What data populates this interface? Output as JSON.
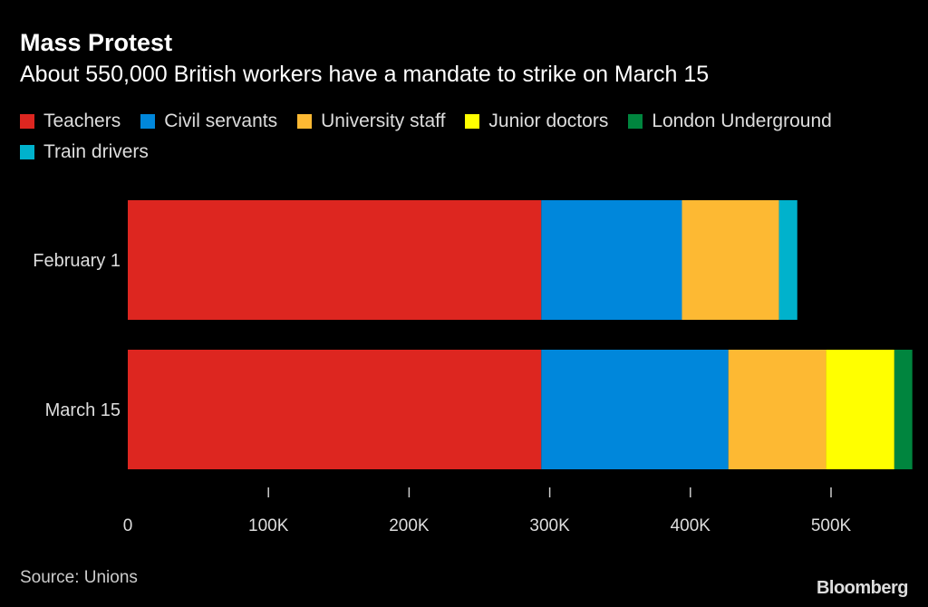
{
  "chart_data": {
    "type": "bar",
    "orientation": "horizontal",
    "stacked": true,
    "title": "Mass Protest",
    "subtitle": "About 550,000 British workers have a mandate to strike on March 15",
    "categories": [
      "February 1",
      "March 15"
    ],
    "series": [
      {
        "name": "Teachers",
        "color": "#dd2620",
        "values": [
          294000,
          294000
        ]
      },
      {
        "name": "Civil servants",
        "color": "#0087db",
        "values": [
          100000,
          133000
        ]
      },
      {
        "name": "University staff",
        "color": "#fdb933",
        "values": [
          69000,
          69500
        ]
      },
      {
        "name": "Junior doctors",
        "color": "#ffff00",
        "values": [
          0,
          48500
        ]
      },
      {
        "name": "London Underground",
        "color": "#00853e",
        "values": [
          0,
          12800
        ]
      },
      {
        "name": "Train drivers",
        "color": "#00b2cc",
        "values": [
          13000,
          0
        ]
      }
    ],
    "xlim": [
      0,
      558000
    ],
    "xticks": [
      0,
      100000,
      200000,
      300000,
      400000,
      500000
    ],
    "xtick_labels": [
      "0",
      "100K",
      "200K",
      "300K",
      "400K",
      "500K"
    ],
    "xlabel": "",
    "ylabel": "",
    "grid": false,
    "legend_placement": "top"
  },
  "source": "Source: Unions",
  "logo": "Bloomberg"
}
